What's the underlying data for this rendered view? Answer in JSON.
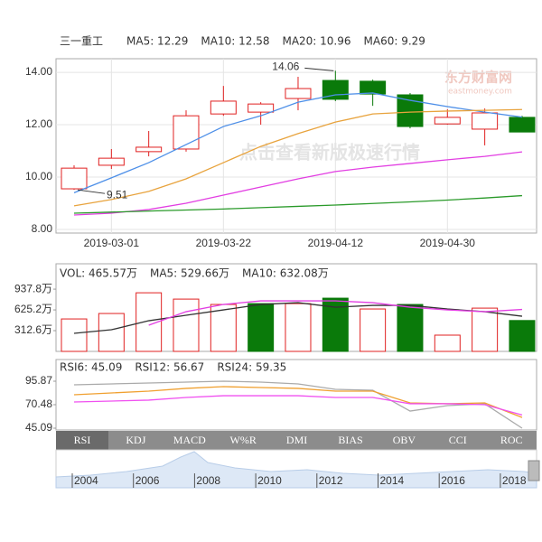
{
  "chart_data": [
    {
      "type": "candlestick",
      "title": "三一重工",
      "categories": [
        null,
        "2019-03-01",
        null,
        null,
        "2019-03-22",
        null,
        null,
        "2019-04-12",
        null,
        null,
        "2019-04-30",
        null,
        null
      ],
      "open": [
        9.55,
        10.45,
        10.97,
        11.07,
        12.41,
        12.48,
        13.0,
        13.69,
        13.66,
        13.14,
        12.03,
        11.83,
        12.28
      ],
      "high": [
        10.45,
        11.07,
        11.76,
        12.55,
        13.48,
        12.86,
        13.83,
        14.06,
        13.72,
        13.21,
        12.59,
        12.62,
        12.34
      ],
      "low": [
        9.51,
        10.31,
        10.79,
        10.97,
        12.34,
        12.0,
        12.55,
        12.9,
        12.72,
        11.86,
        12.0,
        11.21,
        11.72
      ],
      "close": [
        10.34,
        10.72,
        11.14,
        12.34,
        12.9,
        12.79,
        13.38,
        12.97,
        13.17,
        11.93,
        12.28,
        12.45,
        11.72
      ],
      "up_color": "#e02020",
      "down_color": "#0a7a0a",
      "series": [
        {
          "name": "MA5: 12.29",
          "color": "#4d8fe8",
          "values": [
            9.4,
            9.97,
            10.55,
            11.24,
            11.93,
            12.34,
            12.86,
            13.14,
            13.21,
            12.93,
            12.69,
            12.48,
            12.29
          ]
        },
        {
          "name": "MA10: 12.58",
          "color": "#e8a33d",
          "values": [
            8.9,
            9.14,
            9.45,
            9.93,
            10.55,
            11.17,
            11.66,
            12.1,
            12.41,
            12.48,
            12.52,
            12.55,
            12.58
          ]
        },
        {
          "name": "MA20: 10.96",
          "color": "#e23ee2",
          "values": [
            8.55,
            8.62,
            8.76,
            9.0,
            9.31,
            9.62,
            9.93,
            10.21,
            10.38,
            10.52,
            10.66,
            10.79,
            10.96
          ]
        },
        {
          "name": "MA60: 9.29",
          "color": "#2a9a2a",
          "values": [
            8.62,
            8.66,
            8.7,
            8.74,
            8.78,
            8.83,
            8.88,
            8.93,
            8.99,
            9.05,
            9.12,
            9.2,
            9.29
          ]
        }
      ],
      "annotations": [
        "14.06",
        "9.51"
      ],
      "ylim": [
        7.86,
        14.52
      ],
      "yticks": [
        {
          "value": 8,
          "label": "8.00"
        },
        {
          "value": 10,
          "label": "10.00"
        },
        {
          "value": 12,
          "label": "12.00"
        },
        {
          "value": 14,
          "label": "14.00"
        }
      ],
      "grid": true
    },
    {
      "type": "bar",
      "name": "VOL: 465.57万",
      "color": "#e23ee2",
      "values": [
        489,
        571,
        883,
        788,
        707,
        720,
        720,
        802,
        639,
        707,
        245,
        652,
        465.57
      ],
      "colors": [
        "#e02020",
        "#e02020",
        "#e02020",
        "#e02020",
        "#e02020",
        "#0a7a0a",
        "#e02020",
        "#0a7a0a",
        "#e02020",
        "#0a7a0a",
        "#e02020",
        "#e02020",
        "#0a7a0a"
      ],
      "series": [
        {
          "name": "MA5: 529.66万",
          "color": "#333333",
          "values": [
            272,
            326,
            462,
            544,
            625,
            707,
            734,
            666,
            693,
            693,
            639,
            598,
            529.66
          ]
        },
        {
          "name": "MA10: 632.08万",
          "color": "#e23ee2",
          "values": [
            null,
            null,
            394,
            598,
            707,
            761,
            761,
            761,
            734,
            666,
            625,
            598,
            632.08
          ]
        }
      ],
      "ylim": [
        0,
        1320
      ],
      "yticks": [
        {
          "value": 312.6,
          "label": "312.6万"
        },
        {
          "value": 625.2,
          "label": "625.2万"
        },
        {
          "value": 937.8,
          "label": "937.8万"
        }
      ]
    },
    {
      "type": "line",
      "series": [
        {
          "name": "RSI6: 45.09",
          "color": "#aaaaaa",
          "values": [
            91.96,
            92.94,
            93.92,
            94.89,
            95.87,
            94.89,
            92.94,
            87.08,
            86.1,
            63.6,
            69.5,
            71.4,
            45.09
          ]
        },
        {
          "name": "RSI12: 56.67",
          "color": "#f0a030",
          "values": [
            81.2,
            83.2,
            85.1,
            88.1,
            90.0,
            89.0,
            88.1,
            85.1,
            85.1,
            72.4,
            71.5,
            72.4,
            56.67
          ]
        },
        {
          "name": "RSI24: 59.35",
          "color": "#f050f0",
          "values": [
            73.4,
            74.4,
            75.4,
            78.3,
            80.2,
            80.2,
            80.2,
            78.3,
            78.3,
            71.5,
            71.5,
            70.5,
            59.35
          ]
        }
      ],
      "ylim": [
        45.09,
        119.3
      ],
      "yticks": [
        45.09,
        70.48,
        95.87
      ]
    }
  ],
  "watermark": "点击查看新版极速行情",
  "logo": {
    "name": "东方财富网",
    "site": "eastmoney.com"
  },
  "tabs": [
    "RSI",
    "KDJ",
    "MACD",
    "W%R",
    "DMI",
    "BIAS",
    "OBV",
    "CCI",
    "ROC"
  ],
  "navigator": [
    "2004",
    "2006",
    "2008",
    "2010",
    "2012",
    "2014",
    "2016",
    "2018"
  ]
}
